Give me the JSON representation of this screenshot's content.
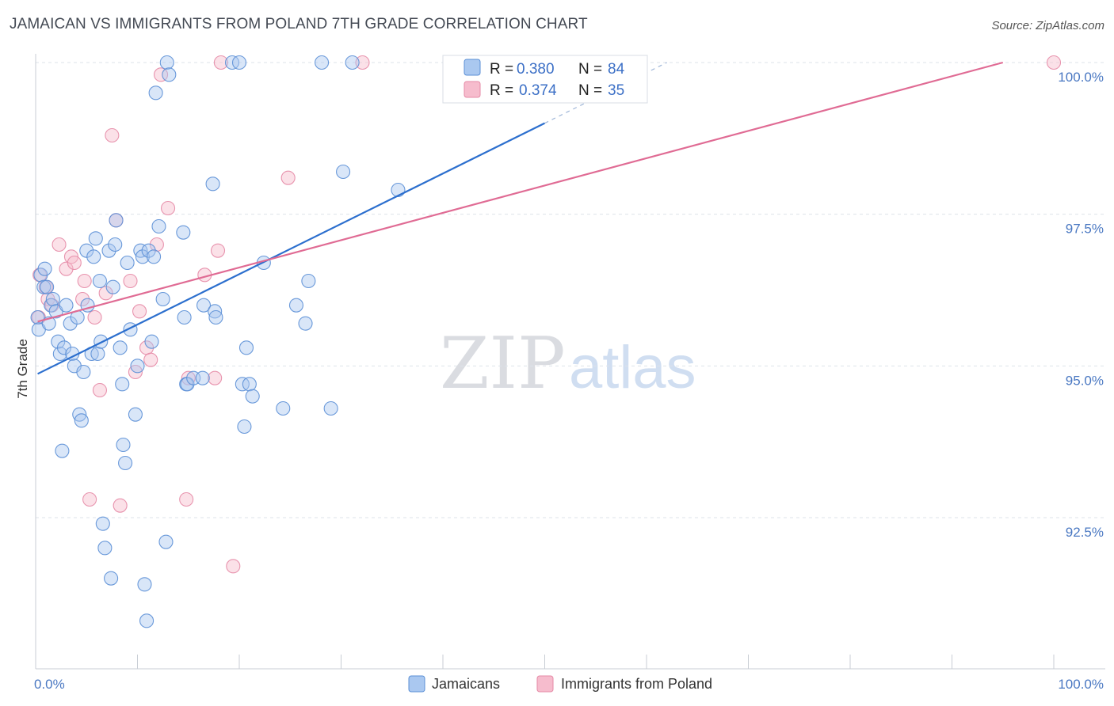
{
  "title": "JAMAICAN VS IMMIGRANTS FROM POLAND 7TH GRADE CORRELATION CHART",
  "source": "Source: ZipAtlas.com",
  "watermark": {
    "zip": "ZIP",
    "atlas": "atlas"
  },
  "colors": {
    "blue_fill": "#aac8f0",
    "blue_stroke": "#5b8fd6",
    "blue_line": "#2c6fce",
    "pink_fill": "#f6bccd",
    "pink_stroke": "#e58aa6",
    "pink_line": "#e06b94",
    "tick_text": "#4a78c2",
    "grid": "#dde3ea"
  },
  "legend": {
    "rows": [
      {
        "r_label": "R =",
        "r_value": "0.380",
        "n_label": "N =",
        "n_value": "84"
      },
      {
        "r_label": "R =",
        "r_value": "0.374",
        "n_label": "N =",
        "n_value": "35"
      }
    ]
  },
  "chart_data": {
    "type": "scatter",
    "xlabel": "",
    "ylabel": "7th Grade",
    "xlim": [
      0,
      100
    ],
    "ylim": [
      90.0,
      100.2
    ],
    "x_tick_labels": [
      {
        "value": 0,
        "label": "0.0%"
      },
      {
        "value": 100,
        "label": "100.0%"
      }
    ],
    "y_tick_labels": [
      {
        "value": 92.5,
        "label": "92.5%"
      },
      {
        "value": 95.0,
        "label": "95.0%"
      },
      {
        "value": 97.5,
        "label": "97.5%"
      },
      {
        "value": 100.0,
        "label": "100.0%"
      }
    ],
    "series": [
      {
        "name": "Jamaicans",
        "R": 0.38,
        "N": 84,
        "trend": {
          "x0": 0.2,
          "y0": 94.87,
          "x1": 50.0,
          "y1": 99.0,
          "dash_to_x": 62.0,
          "dash_to_y": 100.0
        },
        "points": [
          [
            0.2,
            95.8
          ],
          [
            0.3,
            95.6
          ],
          [
            0.5,
            96.5
          ],
          [
            0.8,
            96.3
          ],
          [
            0.9,
            96.6
          ],
          [
            1.1,
            96.3
          ],
          [
            1.3,
            95.7
          ],
          [
            1.5,
            96.0
          ],
          [
            1.7,
            96.1
          ],
          [
            2.0,
            95.9
          ],
          [
            2.2,
            95.4
          ],
          [
            2.4,
            95.2
          ],
          [
            2.6,
            93.6
          ],
          [
            2.8,
            95.3
          ],
          [
            3.0,
            96.0
          ],
          [
            3.4,
            95.7
          ],
          [
            3.6,
            95.2
          ],
          [
            3.8,
            95.0
          ],
          [
            4.1,
            95.8
          ],
          [
            4.3,
            94.2
          ],
          [
            4.5,
            94.1
          ],
          [
            4.7,
            94.9
          ],
          [
            5.0,
            96.9
          ],
          [
            5.1,
            96.0
          ],
          [
            5.5,
            95.2
          ],
          [
            5.7,
            96.8
          ],
          [
            5.9,
            97.1
          ],
          [
            6.1,
            95.2
          ],
          [
            6.3,
            96.4
          ],
          [
            6.4,
            95.4
          ],
          [
            6.6,
            92.4
          ],
          [
            6.8,
            92.0
          ],
          [
            7.2,
            96.9
          ],
          [
            7.4,
            91.5
          ],
          [
            7.6,
            96.3
          ],
          [
            7.8,
            97.0
          ],
          [
            7.9,
            97.4
          ],
          [
            8.3,
            95.3
          ],
          [
            8.5,
            94.7
          ],
          [
            8.6,
            93.7
          ],
          [
            8.8,
            93.4
          ],
          [
            9.0,
            96.7
          ],
          [
            9.3,
            95.6
          ],
          [
            9.8,
            94.2
          ],
          [
            10.0,
            95.0
          ],
          [
            10.3,
            96.9
          ],
          [
            10.5,
            96.8
          ],
          [
            10.7,
            91.4
          ],
          [
            10.9,
            90.8
          ],
          [
            11.1,
            96.9
          ],
          [
            11.4,
            95.4
          ],
          [
            11.6,
            96.8
          ],
          [
            11.8,
            99.5
          ],
          [
            12.1,
            97.3
          ],
          [
            12.5,
            96.1
          ],
          [
            12.8,
            92.1
          ],
          [
            12.9,
            100.0
          ],
          [
            13.1,
            99.8
          ],
          [
            14.5,
            97.2
          ],
          [
            14.6,
            95.8
          ],
          [
            14.8,
            94.7
          ],
          [
            14.9,
            94.7
          ],
          [
            15.5,
            94.8
          ],
          [
            16.4,
            94.8
          ],
          [
            16.5,
            96.0
          ],
          [
            17.4,
            98.0
          ],
          [
            17.6,
            95.9
          ],
          [
            17.7,
            95.8
          ],
          [
            19.3,
            100.0
          ],
          [
            20.0,
            100.0
          ],
          [
            20.3,
            94.7
          ],
          [
            20.5,
            94.0
          ],
          [
            20.7,
            95.3
          ],
          [
            21.0,
            94.7
          ],
          [
            21.3,
            94.5
          ],
          [
            22.4,
            96.7
          ],
          [
            24.3,
            94.3
          ],
          [
            25.6,
            96.0
          ],
          [
            26.5,
            95.7
          ],
          [
            26.8,
            96.4
          ],
          [
            28.1,
            100.0
          ],
          [
            29.0,
            94.3
          ],
          [
            30.2,
            98.2
          ],
          [
            31.1,
            100.0
          ],
          [
            35.6,
            97.9
          ]
        ]
      },
      {
        "name": "Immigrants from Poland",
        "R": 0.374,
        "N": 35,
        "trend": {
          "x0": 0.2,
          "y0": 95.73,
          "x1": 95.0,
          "y1": 100.0
        },
        "points": [
          [
            0.3,
            95.8
          ],
          [
            0.4,
            96.5
          ],
          [
            1.0,
            96.3
          ],
          [
            1.2,
            96.1
          ],
          [
            1.6,
            96.0
          ],
          [
            2.3,
            97.0
          ],
          [
            3.0,
            96.6
          ],
          [
            3.5,
            96.8
          ],
          [
            3.8,
            96.7
          ],
          [
            4.6,
            96.1
          ],
          [
            4.8,
            96.4
          ],
          [
            5.3,
            92.8
          ],
          [
            5.8,
            95.8
          ],
          [
            6.3,
            94.6
          ],
          [
            6.9,
            96.2
          ],
          [
            7.5,
            98.8
          ],
          [
            7.9,
            97.4
          ],
          [
            8.3,
            92.7
          ],
          [
            9.3,
            96.4
          ],
          [
            9.8,
            94.9
          ],
          [
            10.2,
            95.9
          ],
          [
            10.9,
            95.3
          ],
          [
            11.3,
            95.1
          ],
          [
            11.9,
            97.0
          ],
          [
            12.3,
            99.8
          ],
          [
            13.0,
            97.6
          ],
          [
            14.8,
            92.8
          ],
          [
            15.0,
            94.8
          ],
          [
            16.6,
            96.5
          ],
          [
            17.6,
            94.8
          ],
          [
            17.9,
            96.9
          ],
          [
            18.2,
            100.0
          ],
          [
            19.4,
            91.7
          ],
          [
            24.8,
            98.1
          ],
          [
            32.1,
            100.0
          ],
          [
            100.0,
            100.0
          ]
        ]
      }
    ]
  },
  "bottom_legend": [
    "Jamaicans",
    "Immigrants from Poland"
  ]
}
